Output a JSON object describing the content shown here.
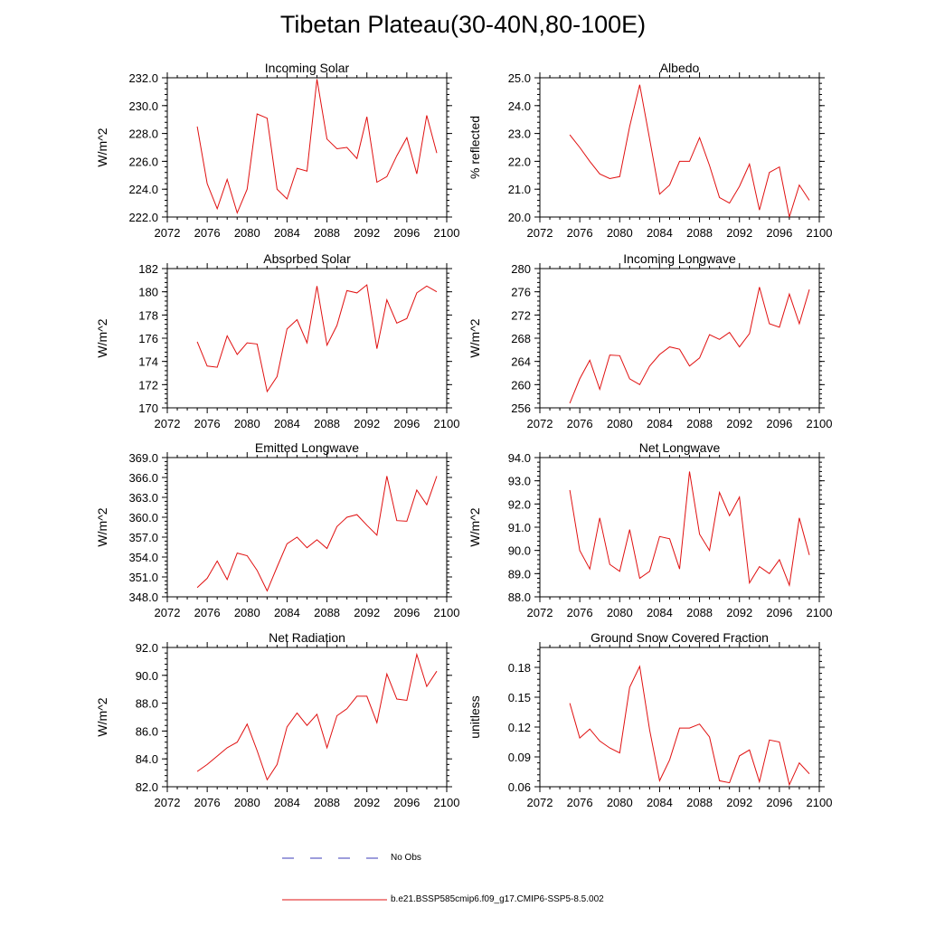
{
  "page": {
    "title": "Tibetan Plateau(30-40N,80-100E)"
  },
  "legend": {
    "obs_label": "No Obs",
    "obs_color": "#3b3bb8",
    "model_label": "b.e21.BSSP585cmip6.f09_g17.CMIP6-SSP5-8.5.002",
    "model_color": "#e01010"
  },
  "chart_data": [
    {
      "type": "line",
      "title": "Incoming Solar",
      "ylabel": "W/m^2",
      "xlim": [
        2072,
        2100
      ],
      "ylim": [
        222.0,
        232.0
      ],
      "xticks": [
        2072,
        2076,
        2080,
        2084,
        2088,
        2092,
        2096,
        2100
      ],
      "xtick_labels": [
        "2072",
        "2076",
        "2080",
        "2084",
        "2088",
        "2092",
        "2096",
        "2100"
      ],
      "yticks": [
        222.0,
        224.0,
        226.0,
        228.0,
        230.0,
        232.0
      ],
      "ytick_labels": [
        "222.0",
        "224.0",
        "226.0",
        "228.0",
        "230.0",
        "232.0"
      ],
      "x": [
        2075,
        2076,
        2077,
        2078,
        2079,
        2080,
        2081,
        2082,
        2083,
        2084,
        2085,
        2086,
        2087,
        2088,
        2089,
        2090,
        2091,
        2092,
        2093,
        2094,
        2095,
        2096,
        2097,
        2098,
        2099
      ],
      "y": [
        228.5,
        224.4,
        222.6,
        224.7,
        222.3,
        224.0,
        229.4,
        229.1,
        224.0,
        223.3,
        225.5,
        225.3,
        231.9,
        227.6,
        226.9,
        227.0,
        226.2,
        229.2,
        224.5,
        224.9,
        226.4,
        227.7,
        225.1,
        229.3,
        226.6
      ]
    },
    {
      "type": "line",
      "title": "Albedo",
      "ylabel": "% reflected",
      "xlim": [
        2072,
        2100
      ],
      "ylim": [
        20.0,
        25.0
      ],
      "xticks": [
        2072,
        2076,
        2080,
        2084,
        2088,
        2092,
        2096,
        2100
      ],
      "xtick_labels": [
        "2072",
        "2076",
        "2080",
        "2084",
        "2088",
        "2092",
        "2096",
        "2100"
      ],
      "yticks": [
        20.0,
        21.0,
        22.0,
        23.0,
        24.0,
        25.0
      ],
      "ytick_labels": [
        "20.0",
        "21.0",
        "22.0",
        "23.0",
        "24.0",
        "25.0"
      ],
      "x": [
        2075,
        2076,
        2077,
        2078,
        2079,
        2080,
        2081,
        2082,
        2083,
        2084,
        2085,
        2086,
        2087,
        2088,
        2089,
        2090,
        2091,
        2092,
        2093,
        2094,
        2095,
        2096,
        2097,
        2098,
        2099
      ],
      "y": [
        22.95,
        22.5,
        22.0,
        21.55,
        21.38,
        21.45,
        23.25,
        24.75,
        22.8,
        20.82,
        21.15,
        22.0,
        22.0,
        22.85,
        21.85,
        20.7,
        20.5,
        21.1,
        21.9,
        20.25,
        21.6,
        21.8,
        20.0,
        21.15,
        20.6
      ]
    },
    {
      "type": "line",
      "title": "Absorbed Solar",
      "ylabel": "W/m^2",
      "xlim": [
        2072,
        2100
      ],
      "ylim": [
        170,
        182
      ],
      "xticks": [
        2072,
        2076,
        2080,
        2084,
        2088,
        2092,
        2096,
        2100
      ],
      "xtick_labels": [
        "2072",
        "2076",
        "2080",
        "2084",
        "2088",
        "2092",
        "2096",
        "2100"
      ],
      "yticks": [
        170,
        172,
        174,
        176,
        178,
        180,
        182
      ],
      "ytick_labels": [
        "170",
        "172",
        "174",
        "176",
        "178",
        "180",
        "182"
      ],
      "x": [
        2075,
        2076,
        2077,
        2078,
        2079,
        2080,
        2081,
        2082,
        2083,
        2084,
        2085,
        2086,
        2087,
        2088,
        2089,
        2090,
        2091,
        2092,
        2093,
        2094,
        2095,
        2096,
        2097,
        2098,
        2099
      ],
      "y": [
        175.7,
        173.6,
        173.5,
        176.2,
        174.6,
        175.6,
        175.5,
        171.4,
        172.7,
        176.8,
        177.6,
        175.6,
        180.5,
        175.4,
        177.1,
        180.1,
        179.9,
        180.6,
        175.1,
        179.3,
        177.3,
        177.7,
        179.9,
        180.5,
        180.0
      ]
    },
    {
      "type": "line",
      "title": "Incoming Longwave",
      "ylabel": "W/m^2",
      "xlim": [
        2072,
        2100
      ],
      "ylim": [
        256,
        280
      ],
      "xticks": [
        2072,
        2076,
        2080,
        2084,
        2088,
        2092,
        2096,
        2100
      ],
      "xtick_labels": [
        "2072",
        "2076",
        "2080",
        "2084",
        "2088",
        "2092",
        "2096",
        "2100"
      ],
      "yticks": [
        256,
        260,
        264,
        268,
        272,
        276,
        280
      ],
      "ytick_labels": [
        "256",
        "260",
        "264",
        "268",
        "272",
        "276",
        "280"
      ],
      "x": [
        2075,
        2076,
        2077,
        2078,
        2079,
        2080,
        2081,
        2082,
        2083,
        2084,
        2085,
        2086,
        2087,
        2088,
        2089,
        2090,
        2091,
        2092,
        2093,
        2094,
        2095,
        2096,
        2097,
        2098,
        2099
      ],
      "y": [
        256.8,
        261.0,
        264.2,
        259.2,
        265.1,
        265.0,
        261.0,
        260.0,
        263.2,
        265.2,
        266.5,
        266.1,
        263.2,
        264.6,
        268.6,
        267.8,
        269.0,
        266.5,
        268.8,
        276.8,
        270.5,
        269.9,
        275.6,
        270.5,
        276.4
      ]
    },
    {
      "type": "line",
      "title": "Emitted Longwave",
      "ylabel": "W/m^2",
      "xlim": [
        2072,
        2100
      ],
      "ylim": [
        348.0,
        369.0
      ],
      "xticks": [
        2072,
        2076,
        2080,
        2084,
        2088,
        2092,
        2096,
        2100
      ],
      "xtick_labels": [
        "2072",
        "2076",
        "2080",
        "2084",
        "2088",
        "2092",
        "2096",
        "2100"
      ],
      "yticks": [
        348.0,
        351.0,
        354.0,
        357.0,
        360.0,
        363.0,
        366.0,
        369.0
      ],
      "ytick_labels": [
        "348.0",
        "351.0",
        "354.0",
        "357.0",
        "360.0",
        "363.0",
        "366.0",
        "369.0"
      ],
      "x": [
        2075,
        2076,
        2077,
        2078,
        2079,
        2080,
        2081,
        2082,
        2083,
        2084,
        2085,
        2086,
        2087,
        2088,
        2089,
        2090,
        2091,
        2092,
        2093,
        2094,
        2095,
        2096,
        2097,
        2098,
        2099
      ],
      "y": [
        349.4,
        350.8,
        353.4,
        350.6,
        354.6,
        354.2,
        352.0,
        348.9,
        352.5,
        356.0,
        357.0,
        355.4,
        356.6,
        355.3,
        358.6,
        360.0,
        360.4,
        358.8,
        357.3,
        366.2,
        359.5,
        359.4,
        364.1,
        361.9,
        366.2
      ]
    },
    {
      "type": "line",
      "title": "Net Longwave",
      "ylabel": "W/m^2",
      "xlim": [
        2072,
        2100
      ],
      "ylim": [
        88.0,
        94.0
      ],
      "xticks": [
        2072,
        2076,
        2080,
        2084,
        2088,
        2092,
        2096,
        2100
      ],
      "xtick_labels": [
        "2072",
        "2076",
        "2080",
        "2084",
        "2088",
        "2092",
        "2096",
        "2100"
      ],
      "yticks": [
        88.0,
        89.0,
        90.0,
        91.0,
        92.0,
        93.0,
        94.0
      ],
      "ytick_labels": [
        "88.0",
        "89.0",
        "90.0",
        "91.0",
        "92.0",
        "93.0",
        "94.0"
      ],
      "x": [
        2075,
        2076,
        2077,
        2078,
        2079,
        2080,
        2081,
        2082,
        2083,
        2084,
        2085,
        2086,
        2087,
        2088,
        2089,
        2090,
        2091,
        2092,
        2093,
        2094,
        2095,
        2096,
        2097,
        2098,
        2099
      ],
      "y": [
        92.6,
        90.0,
        89.2,
        91.4,
        89.4,
        89.1,
        90.9,
        88.8,
        89.1,
        90.6,
        90.5,
        89.2,
        93.4,
        90.7,
        90.0,
        92.5,
        91.5,
        92.3,
        88.6,
        89.3,
        89.0,
        89.6,
        88.5,
        91.4,
        89.8
      ]
    },
    {
      "type": "line",
      "title": "Net Radiation",
      "ylabel": "W/m^2",
      "xlim": [
        2072,
        2100
      ],
      "ylim": [
        82.0,
        92.0
      ],
      "xticks": [
        2072,
        2076,
        2080,
        2084,
        2088,
        2092,
        2096,
        2100
      ],
      "xtick_labels": [
        "2072",
        "2076",
        "2080",
        "2084",
        "2088",
        "2092",
        "2096",
        "2100"
      ],
      "yticks": [
        82.0,
        84.0,
        86.0,
        88.0,
        90.0,
        92.0
      ],
      "ytick_labels": [
        "82.0",
        "84.0",
        "86.0",
        "88.0",
        "90.0",
        "92.0"
      ],
      "x": [
        2075,
        2076,
        2077,
        2078,
        2079,
        2080,
        2081,
        2082,
        2083,
        2084,
        2085,
        2086,
        2087,
        2088,
        2089,
        2090,
        2091,
        2092,
        2093,
        2094,
        2095,
        2096,
        2097,
        2098,
        2099
      ],
      "y": [
        83.1,
        83.6,
        84.2,
        84.8,
        85.2,
        86.5,
        84.6,
        82.5,
        83.6,
        86.3,
        87.3,
        86.4,
        87.2,
        84.8,
        87.1,
        87.6,
        88.5,
        88.5,
        86.6,
        90.1,
        88.3,
        88.2,
        91.5,
        89.2,
        90.3
      ]
    },
    {
      "type": "line",
      "title": "Ground Snow Covered Fraction",
      "ylabel": "unitless",
      "xlim": [
        2072,
        2100
      ],
      "ylim": [
        0.06,
        0.2
      ],
      "xticks": [
        2072,
        2076,
        2080,
        2084,
        2088,
        2092,
        2096,
        2100
      ],
      "xtick_labels": [
        "2072",
        "2076",
        "2080",
        "2084",
        "2088",
        "2092",
        "2096",
        "2100"
      ],
      "yticks": [
        0.06,
        0.09,
        0.12,
        0.15,
        0.18
      ],
      "ytick_labels": [
        "0.06",
        "0.09",
        "0.12",
        "0.15",
        "0.18"
      ],
      "x": [
        2075,
        2076,
        2077,
        2078,
        2079,
        2080,
        2081,
        2082,
        2083,
        2084,
        2085,
        2086,
        2087,
        2088,
        2089,
        2090,
        2091,
        2092,
        2093,
        2094,
        2095,
        2096,
        2097,
        2098,
        2099
      ],
      "y": [
        0.144,
        0.109,
        0.118,
        0.106,
        0.099,
        0.094,
        0.16,
        0.181,
        0.117,
        0.066,
        0.087,
        0.119,
        0.119,
        0.123,
        0.11,
        0.066,
        0.064,
        0.091,
        0.097,
        0.065,
        0.107,
        0.105,
        0.062,
        0.084,
        0.073
      ]
    }
  ]
}
